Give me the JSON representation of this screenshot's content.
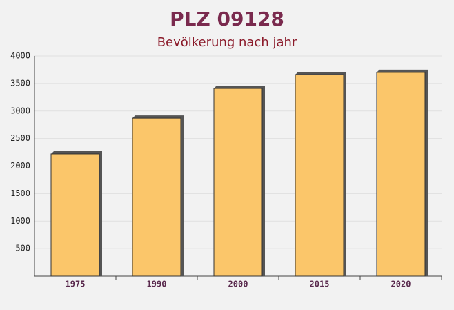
{
  "chart_data": {
    "type": "bar",
    "title": "PLZ 09128",
    "subtitle": "Bevölkerung nach jahr",
    "categories": [
      "1975",
      "1990",
      "2000",
      "2015",
      "2020"
    ],
    "values": [
      2220,
      2870,
      3410,
      3660,
      3700
    ],
    "color": "#fbc66a",
    "ylim": [
      0,
      4000
    ],
    "yticks": [
      500,
      1000,
      1500,
      2000,
      2500,
      3000,
      3500,
      4000
    ],
    "grid": true
  }
}
